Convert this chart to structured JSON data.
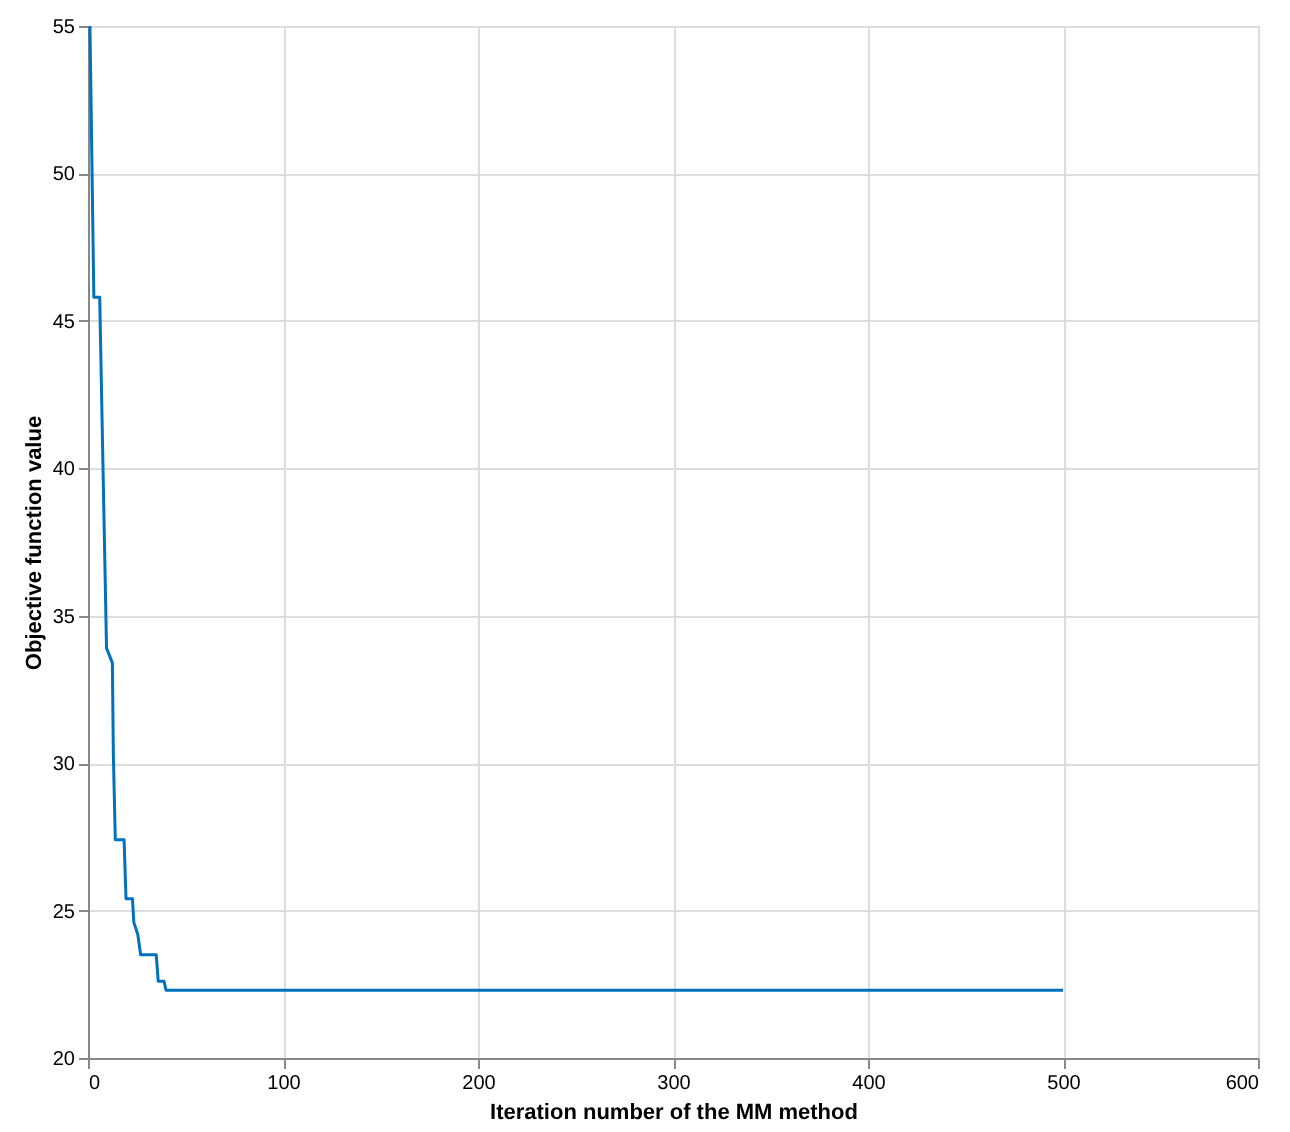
{
  "chart_data": {
    "type": "line",
    "xlabel": "Iteration number of the MM method",
    "ylabel": "Objective function value",
    "x": [
      1,
      3,
      6,
      9.5,
      12.5,
      13,
      14,
      18.5,
      19.5,
      22.8,
      23.5,
      25.5,
      27,
      35,
      36,
      39,
      40,
      500
    ],
    "series": [
      {
        "color": "#0072bd",
        "values": [
          55,
          45.8,
          45.8,
          33.9,
          33.4,
          30.3,
          27.4,
          27.4,
          25.4,
          25.4,
          24.6,
          24.2,
          23.5,
          23.5,
          22.6,
          22.6,
          22.3,
          22.3
        ]
      }
    ],
    "xlim": [
      0,
      600
    ],
    "xticks": [
      0,
      100,
      200,
      300,
      400,
      500,
      600
    ],
    "ylim": [
      20,
      55
    ],
    "yticks": [
      20,
      25,
      30,
      35,
      40,
      45,
      50,
      55
    ],
    "grid": true,
    "marker": "none",
    "line_style": "solid"
  }
}
